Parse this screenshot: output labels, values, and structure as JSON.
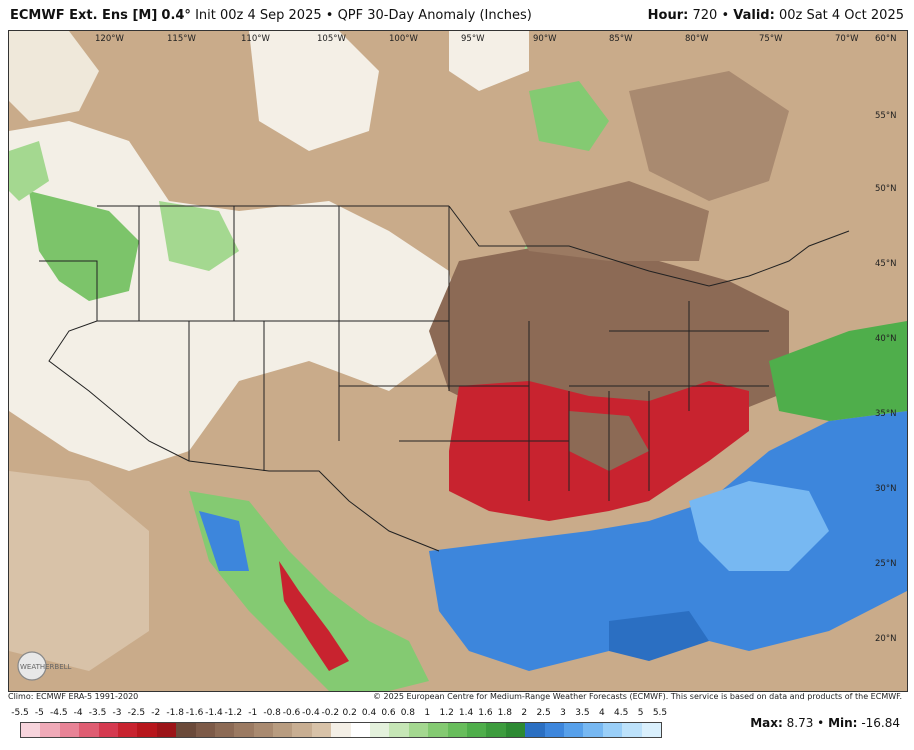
{
  "header": {
    "model": "ECMWF Ext. Ens [M]",
    "resolution": "0.4°",
    "init": "Init 00z 4 Sep 2025",
    "product": "QPF 30-Day Anomaly (Inches)",
    "hour_label": "Hour:",
    "hour_value": "720",
    "valid_label": "Valid:",
    "valid_value": "00z Sat 4 Oct 2025",
    "separator": "•"
  },
  "map": {
    "lon_labels": [
      "120°W",
      "115°W",
      "110°W",
      "105°W",
      "100°W",
      "95°W",
      "90°W",
      "85°W",
      "80°W",
      "75°W",
      "70°W",
      "60°N"
    ],
    "lat_labels": [
      "55°N",
      "50°N",
      "45°N",
      "40°N",
      "35°N",
      "30°N",
      "25°N",
      "20°N"
    ],
    "logo_text": "WEATHERBELL"
  },
  "footer": {
    "climo": "Climo: ECMWF ERA-5 1991-2020",
    "copyright": "© 2025 European Centre for Medium-Range Weather Forecasts (ECMWF). This service is based on data and products of the ECMWF."
  },
  "scale": {
    "labels": [
      "-5.5",
      "-5",
      "-4.5",
      "-4",
      "-3.5",
      "-3",
      "-2.5",
      "-2",
      "-1.8",
      "-1.6",
      "-1.4",
      "-1.2",
      "-1",
      "-0.8",
      "-0.6",
      "-0.4",
      "-0.2",
      "0.2",
      "0.4",
      "0.6",
      "0.8",
      "1",
      "1.2",
      "1.4",
      "1.6",
      "1.8",
      "2",
      "2.5",
      "3",
      "3.5",
      "4",
      "4.5",
      "5",
      "5.5"
    ],
    "colors": [
      "#f7d4dc",
      "#f0aab8",
      "#e88396",
      "#df5d72",
      "#d53a50",
      "#c8232f",
      "#b7161c",
      "#9c1418",
      "#6b4a3a",
      "#7d5a48",
      "#8c6a55",
      "#9b7a62",
      "#a98a70",
      "#b89c80",
      "#c8ae92",
      "#d8c2a8",
      "#f4efe6",
      "#ffffff",
      "#e4f1dc",
      "#c6e6b6",
      "#a4d890",
      "#84ca72",
      "#68bd5c",
      "#4fae4b",
      "#3d9c3e",
      "#2d8a33",
      "#2b6fc2",
      "#3d86dc",
      "#57a0ea",
      "#77b8f2",
      "#9acff8",
      "#bde2fb",
      "#daf0fd"
    ]
  },
  "stats": {
    "max_label": "Max:",
    "max_value": "8.73",
    "sep": "•",
    "min_label": "Min:",
    "min_value": "-16.84"
  }
}
